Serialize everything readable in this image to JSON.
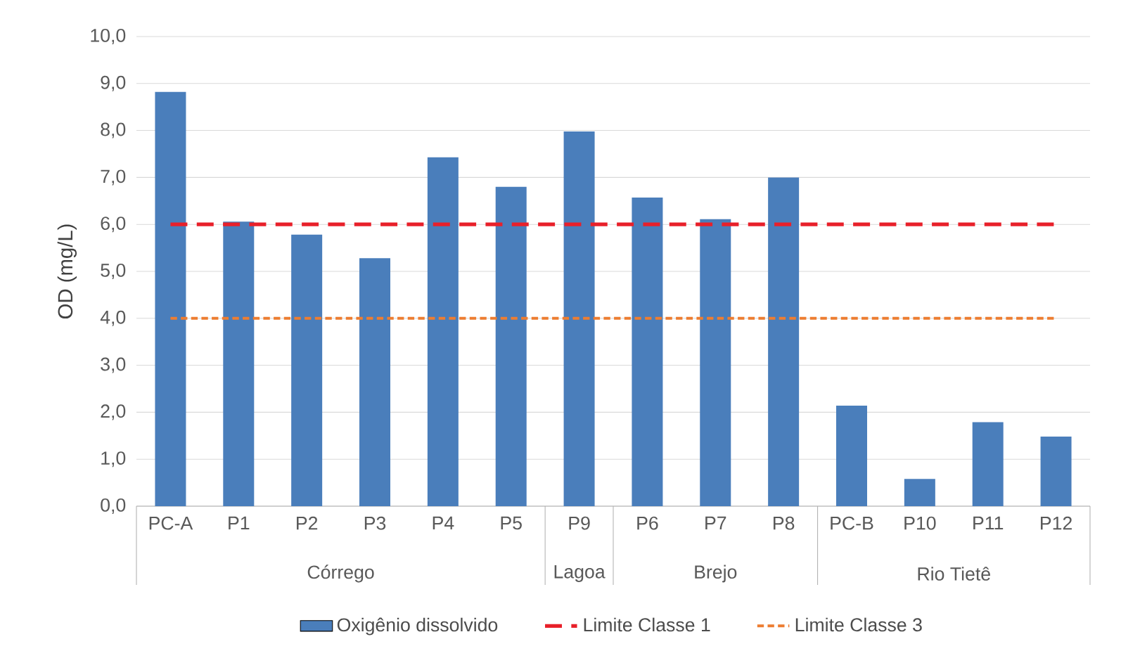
{
  "chart_data": {
    "type": "bar",
    "ylabel": "OD (mg/L)",
    "categories": [
      "PC-A",
      "P1",
      "P2",
      "P3",
      "P4",
      "P5",
      "P9",
      "P6",
      "P7",
      "P8",
      "PC-B",
      "P10",
      "P11",
      "P12"
    ],
    "series": [
      {
        "name": "Oxigênio dissolvido",
        "color": "#4a7ebb",
        "values": [
          8.82,
          6.06,
          5.78,
          5.28,
          7.43,
          6.8,
          7.98,
          6.57,
          6.11,
          7.0,
          2.14,
          0.58,
          1.79,
          1.48
        ]
      }
    ],
    "ylim": [
      0,
      10
    ],
    "yticks": [
      {
        "value": 0,
        "label": "0,0"
      },
      {
        "value": 1,
        "label": "1,0"
      },
      {
        "value": 2,
        "label": "2,0"
      },
      {
        "value": 3,
        "label": "3,0"
      },
      {
        "value": 4,
        "label": "4,0"
      },
      {
        "value": 5,
        "label": "5,0"
      },
      {
        "value": 6,
        "label": "6,0"
      },
      {
        "value": 7,
        "label": "7,0"
      },
      {
        "value": 8,
        "label": "8,0"
      },
      {
        "value": 9,
        "label": "9,0"
      },
      {
        "value": 10,
        "label": "10,0"
      }
    ],
    "ref_lines": [
      {
        "axis": "y",
        "value": 6,
        "label": "Limite Classe 1",
        "color": "#e8202a",
        "line_style": "dashed"
      },
      {
        "axis": "y",
        "value": 4,
        "label": "Limite Classe 3",
        "color": "#ed7d31",
        "line_style": "dotted"
      }
    ],
    "annotations": [
      "Córrego",
      "Lagoa",
      "Brejo",
      "Rio Tietê"
    ],
    "grid": "y",
    "legend": "bottom"
  }
}
